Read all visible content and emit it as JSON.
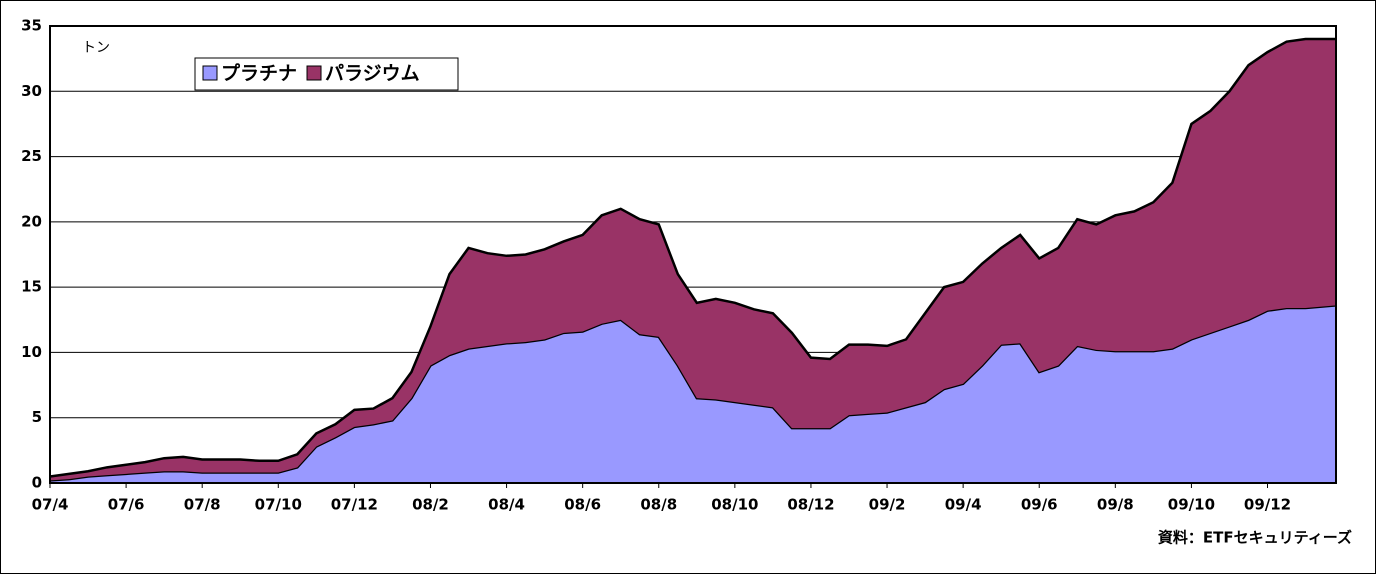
{
  "chart_data": {
    "type": "stacked_area",
    "y_unit_label": "トン",
    "source": "資料：ETFセキュリティーズ",
    "x": [
      0,
      0.5,
      1,
      1.5,
      2,
      2.5,
      3,
      3.5,
      4,
      4.5,
      5,
      5.5,
      6,
      6.5,
      7,
      7.5,
      8,
      8.5,
      9,
      9.5,
      10,
      10.5,
      11,
      11.5,
      12,
      12.5,
      13,
      13.5,
      14,
      14.5,
      15,
      15.5,
      16,
      16.5,
      17,
      17.5,
      18,
      18.5,
      19,
      19.5,
      20,
      20.5,
      21,
      21.5,
      22,
      22.5,
      23,
      23.5,
      24,
      24.5,
      25,
      25.5,
      26,
      26.5,
      27,
      27.5,
      28,
      28.5,
      29,
      29.5,
      30,
      30.5,
      31,
      31.5,
      32,
      32.5,
      33,
      33.8
    ],
    "series": [
      {
        "name": "プラチナ",
        "color": "#9999ff",
        "values": [
          0.2,
          0.3,
          0.5,
          0.6,
          0.7,
          0.8,
          0.9,
          0.9,
          0.8,
          0.8,
          0.8,
          0.8,
          0.8,
          1.2,
          2.8,
          3.5,
          4.3,
          4.5,
          4.8,
          6.5,
          9.0,
          9.8,
          10.3,
          10.5,
          10.7,
          10.8,
          11.0,
          11.5,
          11.6,
          12.2,
          12.5,
          11.4,
          11.2,
          9.0,
          6.5,
          6.4,
          6.2,
          6.0,
          5.8,
          4.2,
          4.2,
          4.2,
          5.2,
          5.3,
          5.4,
          5.8,
          6.2,
          7.2,
          7.6,
          9.0,
          10.6,
          10.7,
          8.5,
          9.0,
          10.5,
          10.2,
          10.1,
          10.1,
          10.1,
          10.3,
          11.0,
          11.5,
          12.0,
          12.5,
          13.2,
          13.4,
          13.4,
          13.6
        ]
      },
      {
        "name": "パラジウム",
        "color": "#993366",
        "values": [
          0.3,
          0.4,
          0.4,
          0.6,
          0.7,
          0.8,
          1.0,
          1.1,
          1.0,
          1.0,
          1.0,
          0.9,
          0.9,
          1.0,
          1.0,
          1.0,
          1.3,
          1.2,
          1.7,
          2.0,
          3.0,
          6.2,
          7.7,
          7.1,
          6.7,
          6.7,
          6.9,
          7.0,
          7.4,
          8.3,
          8.5,
          8.8,
          8.6,
          7.0,
          7.3,
          7.7,
          7.6,
          7.3,
          7.2,
          7.3,
          5.4,
          5.3,
          5.4,
          5.3,
          5.1,
          5.2,
          6.8,
          7.8,
          7.8,
          7.8,
          7.4,
          8.3,
          8.7,
          9.0,
          9.7,
          9.6,
          10.4,
          10.7,
          11.4,
          12.7,
          16.5,
          17.0,
          18.0,
          19.5,
          19.8,
          20.4,
          20.6,
          20.4
        ]
      }
    ],
    "xlim": [
      0,
      33.8
    ],
    "xticks": [
      {
        "value": 0,
        "label": "07/4"
      },
      {
        "value": 2,
        "label": "07/6"
      },
      {
        "value": 4,
        "label": "07/8"
      },
      {
        "value": 6,
        "label": "07/10"
      },
      {
        "value": 8,
        "label": "07/12"
      },
      {
        "value": 10,
        "label": "08/2"
      },
      {
        "value": 12,
        "label": "08/4"
      },
      {
        "value": 14,
        "label": "08/6"
      },
      {
        "value": 16,
        "label": "08/8"
      },
      {
        "value": 18,
        "label": "08/10"
      },
      {
        "value": 20,
        "label": "08/12"
      },
      {
        "value": 22,
        "label": "09/2"
      },
      {
        "value": 24,
        "label": "09/4"
      },
      {
        "value": 26,
        "label": "09/6"
      },
      {
        "value": 28,
        "label": "09/8"
      },
      {
        "value": 30,
        "label": "09/10"
      },
      {
        "value": 32,
        "label": "09/12"
      }
    ],
    "ylim": [
      0,
      35
    ],
    "yticks": [
      0,
      5,
      10,
      15,
      20,
      25,
      30,
      35
    ],
    "grid": true
  }
}
